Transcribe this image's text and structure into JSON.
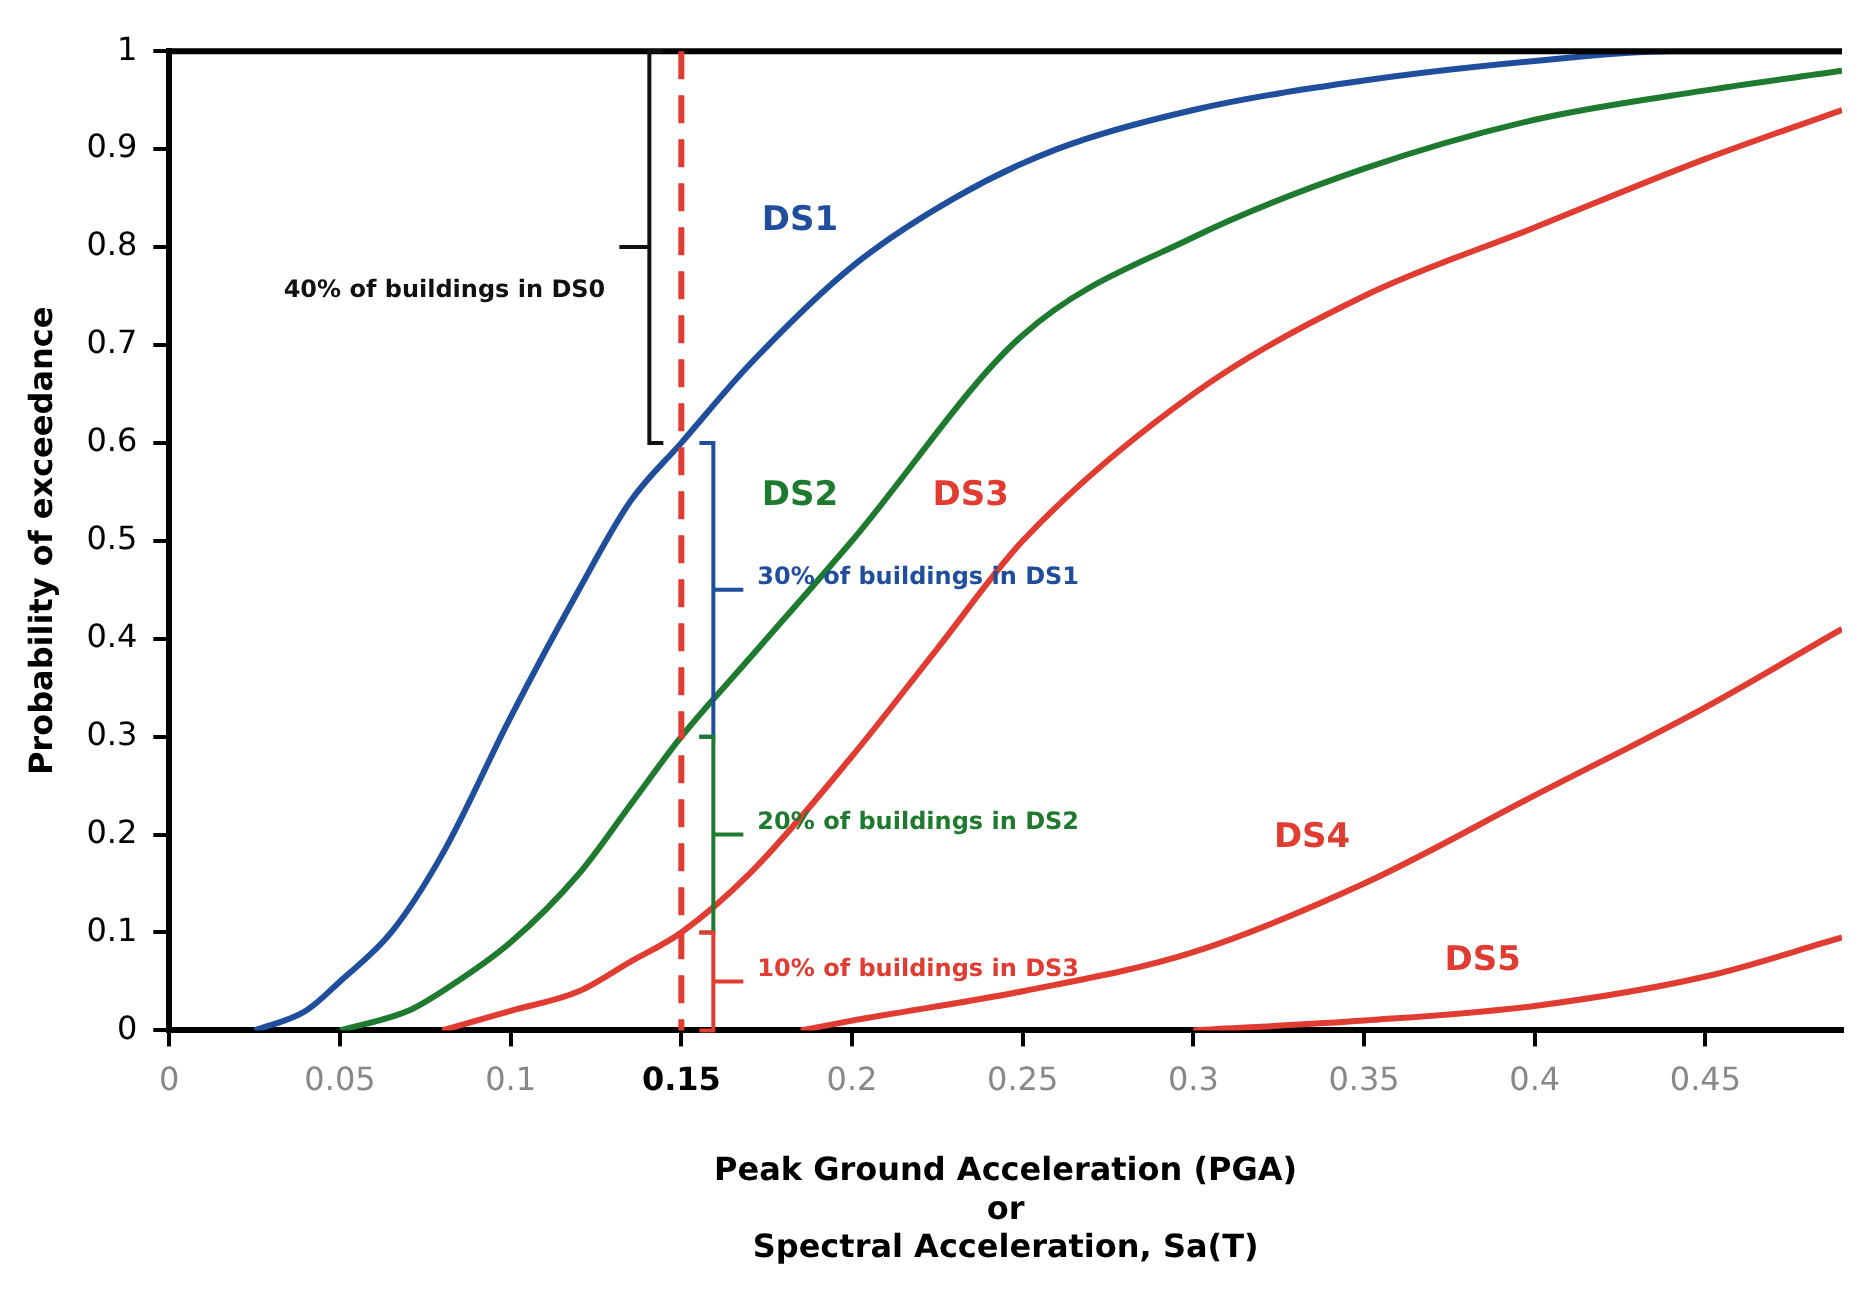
{
  "chart_data": {
    "type": "line",
    "xlabel": "Peak Ground Acceleration (PGA)\nor\nSpectral Acceleration, Sa(T)",
    "ylabel": "Probability of exceedance",
    "xlim": [
      0,
      0.49
    ],
    "xticks": [
      0,
      0.05,
      0.1,
      0.15,
      0.2,
      0.25,
      0.3,
      0.35,
      0.4,
      0.45
    ],
    "ylim": [
      0,
      1
    ],
    "yticks": [
      0,
      0.1,
      0.2,
      0.3,
      0.4,
      0.5,
      0.6,
      0.7,
      0.8,
      0.9,
      1
    ],
    "grid": false,
    "legend": false,
    "marker": "none",
    "line_style": "solid",
    "series": [
      {
        "name": "DS1",
        "color": "#1f4e9c",
        "x": [
          0.025,
          0.04,
          0.05,
          0.065,
          0.08,
          0.1,
          0.12,
          0.135,
          0.15,
          0.17,
          0.2,
          0.23,
          0.26,
          0.3,
          0.35,
          0.4,
          0.44,
          0.49
        ],
        "values": [
          0,
          0.02,
          0.05,
          0.1,
          0.18,
          0.32,
          0.45,
          0.54,
          0.6,
          0.68,
          0.78,
          0.85,
          0.9,
          0.94,
          0.97,
          0.99,
          1,
          1
        ]
      },
      {
        "name": "DS2",
        "color": "#1e7a2e",
        "x": [
          0.05,
          0.07,
          0.08,
          0.1,
          0.12,
          0.135,
          0.15,
          0.17,
          0.2,
          0.25,
          0.3,
          0.35,
          0.4,
          0.45,
          0.49
        ],
        "values": [
          0,
          0.02,
          0.04,
          0.09,
          0.16,
          0.23,
          0.3,
          0.38,
          0.5,
          0.71,
          0.81,
          0.88,
          0.93,
          0.96,
          0.98
        ]
      },
      {
        "name": "DS3",
        "color": "#e03c31",
        "x": [
          0.08,
          0.1,
          0.12,
          0.135,
          0.15,
          0.17,
          0.2,
          0.225,
          0.25,
          0.3,
          0.35,
          0.4,
          0.45,
          0.49
        ],
        "values": [
          0,
          0.02,
          0.04,
          0.07,
          0.1,
          0.16,
          0.28,
          0.39,
          0.5,
          0.65,
          0.75,
          0.82,
          0.89,
          0.94
        ]
      },
      {
        "name": "DS4",
        "color": "#e03c31",
        "x": [
          0.185,
          0.2,
          0.25,
          0.3,
          0.35,
          0.4,
          0.45,
          0.49
        ],
        "values": [
          0,
          0.01,
          0.04,
          0.08,
          0.15,
          0.24,
          0.33,
          0.41
        ]
      },
      {
        "name": "DS5",
        "color": "#e03c31",
        "x": [
          0.3,
          0.35,
          0.4,
          0.45,
          0.49
        ],
        "values": [
          0,
          0.01,
          0.025,
          0.055,
          0.095
        ]
      }
    ],
    "ref_lines": [
      {
        "axis": "x",
        "value": 0.15,
        "color": "#e03c31",
        "line_style": "dashed"
      }
    ],
    "annotations": [
      "40% of buildings in DS0",
      "30% of buildings in DS1",
      "20% of buildings in DS2",
      "10% of buildings in DS3"
    ]
  }
}
